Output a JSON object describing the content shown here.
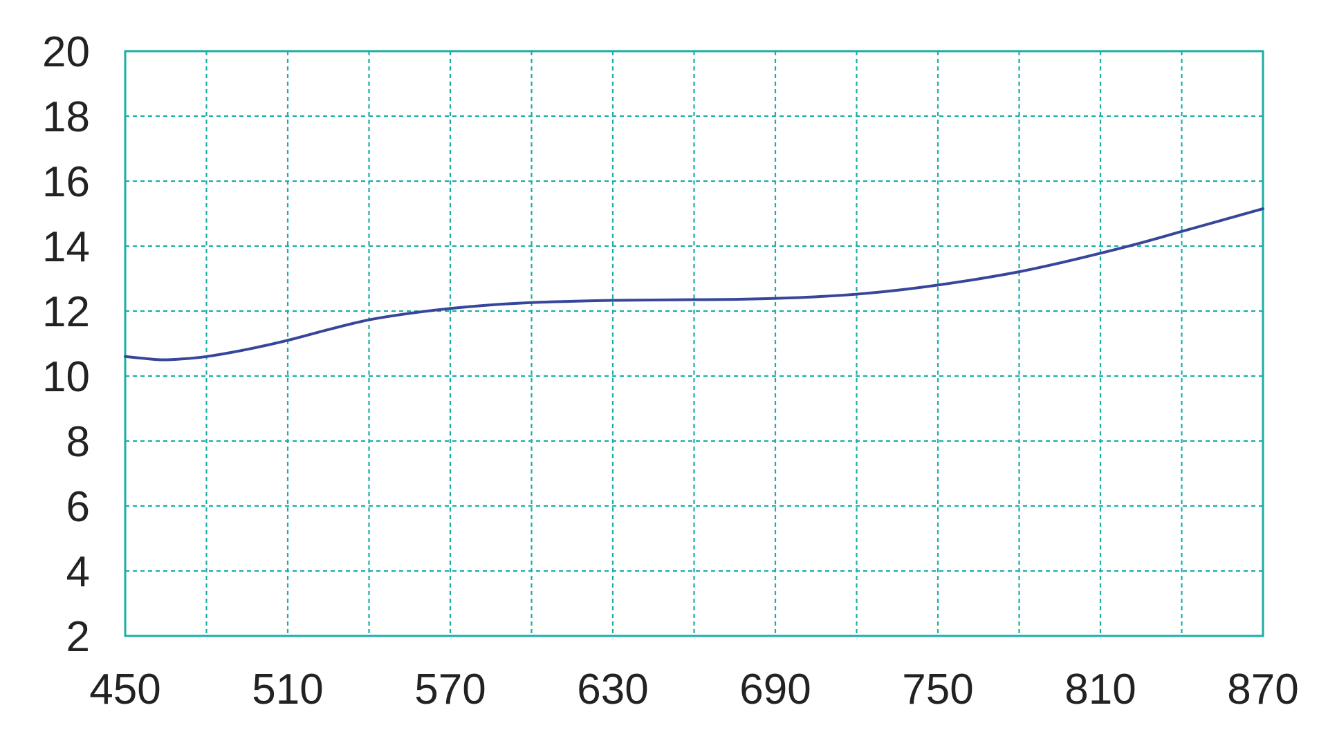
{
  "chart_data": {
    "type": "line",
    "title": "",
    "xlabel": "",
    "ylabel": "",
    "xlim": [
      450,
      870
    ],
    "ylim": [
      2,
      20
    ],
    "x_ticks": [
      "450",
      "510",
      "570",
      "630",
      "690",
      "750",
      "810",
      "870"
    ],
    "y_ticks": [
      "20",
      "18",
      "16",
      "14",
      "12",
      "10",
      "8",
      "6",
      "4",
      "2"
    ],
    "x_grid": [
      480,
      510,
      540,
      570,
      600,
      630,
      660,
      690,
      720,
      750,
      780,
      810,
      840
    ],
    "y_grid": [
      4,
      6,
      8,
      10,
      12,
      14,
      16,
      18
    ],
    "grid": true,
    "colors": {
      "grid": "#1aaea6",
      "frame": "#1aaea6",
      "line": "#37469a"
    },
    "series": [
      {
        "x": [
          450,
          456,
          463,
          470,
          480,
          495,
          510,
          525,
          540,
          555,
          570,
          585,
          600,
          615,
          630,
          645,
          660,
          675,
          690,
          705,
          720,
          735,
          750,
          765,
          780,
          795,
          810,
          825,
          840,
          855,
          870
        ],
        "y": [
          10.6,
          10.55,
          10.5,
          10.52,
          10.6,
          10.82,
          11.1,
          11.43,
          11.73,
          11.93,
          12.08,
          12.19,
          12.26,
          12.3,
          12.33,
          12.34,
          12.35,
          12.36,
          12.39,
          12.44,
          12.52,
          12.64,
          12.8,
          12.99,
          13.21,
          13.48,
          13.78,
          14.1,
          14.45,
          14.8,
          15.15
        ]
      }
    ]
  }
}
